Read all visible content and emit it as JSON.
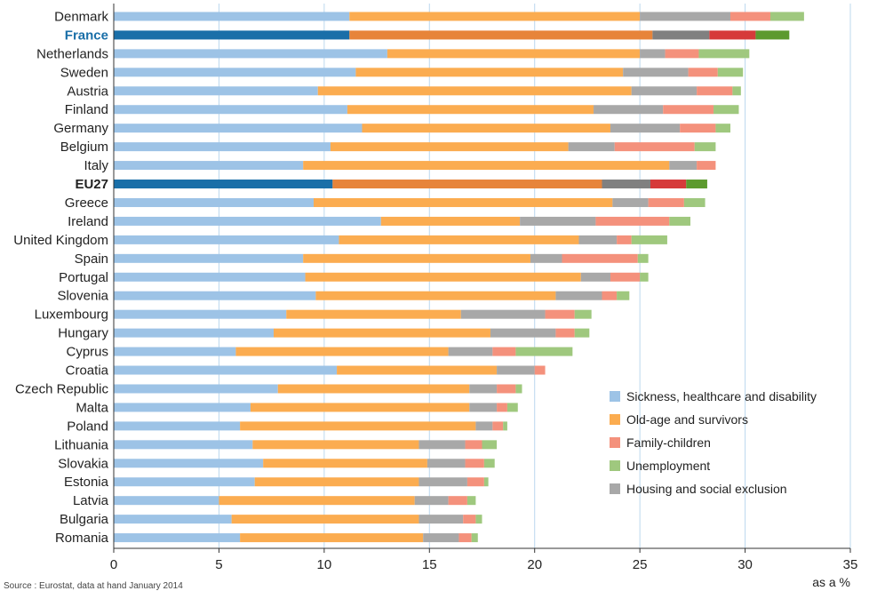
{
  "chart_data": {
    "type": "bar",
    "orientation": "horizontal",
    "stacked": true,
    "xlim": [
      0,
      35
    ],
    "x_ticks": [
      0,
      5,
      10,
      15,
      20,
      25,
      30,
      35
    ],
    "x_unit_label": "as a %",
    "grid": "vertical",
    "legend_position": "bottom-right",
    "highlighted_categories": [
      "France",
      "EU27"
    ],
    "categories": [
      "Denmark",
      "France",
      "Netherlands",
      "Sweden",
      "Austria",
      "Finland",
      "Germany",
      "Belgium",
      "Italy",
      "EU27",
      "Greece",
      "Ireland",
      "United Kingdom",
      "Spain",
      "Portugal",
      "Slovenia",
      "Luxembourg",
      "Hungary",
      "Cyprus",
      "Croatia",
      "Czech Republic",
      "Malta",
      "Poland",
      "Lithuania",
      "Slovakia",
      "Estonia",
      "Latvia",
      "Bulgaria",
      "Romania"
    ],
    "series": [
      {
        "name": "Sickness, healthcare and disability",
        "color": "#9dc3e6",
        "highlight_color": "#1a6fa8",
        "values": [
          11.2,
          11.2,
          13.0,
          11.5,
          9.7,
          11.1,
          11.8,
          10.3,
          9.0,
          10.4,
          9.5,
          12.7,
          10.7,
          9.0,
          9.1,
          9.6,
          8.2,
          7.6,
          5.8,
          10.6,
          7.8,
          6.5,
          6.0,
          6.6,
          7.1,
          6.7,
          5.0,
          5.6,
          6.0
        ]
      },
      {
        "name": "Old-age and survivors",
        "color": "#fbac50",
        "highlight_color": "#e7843a",
        "values": [
          13.8,
          14.4,
          12.0,
          12.7,
          14.9,
          11.7,
          11.8,
          11.3,
          17.4,
          12.8,
          14.2,
          6.6,
          11.4,
          10.8,
          13.1,
          11.4,
          8.3,
          10.3,
          10.1,
          7.6,
          9.1,
          10.4,
          11.2,
          7.9,
          7.8,
          7.8,
          9.3,
          8.9,
          8.7
        ]
      },
      {
        "name": "Housing and social exclusion",
        "color": "#a8a8a8",
        "highlight_color": "#808080",
        "values": [
          4.3,
          2.7,
          1.2,
          3.1,
          3.1,
          3.3,
          3.3,
          2.2,
          1.3,
          2.3,
          1.7,
          3.6,
          1.8,
          1.5,
          1.4,
          2.2,
          4.0,
          3.1,
          2.1,
          1.8,
          1.3,
          1.3,
          0.8,
          2.2,
          1.8,
          2.3,
          1.6,
          2.1,
          1.7
        ]
      },
      {
        "name": "Family-children",
        "color": "#f4917c",
        "highlight_color": "#d63a3a",
        "values": [
          1.9,
          2.2,
          1.6,
          1.4,
          1.7,
          2.4,
          1.7,
          3.8,
          0.9,
          1.7,
          1.7,
          3.5,
          0.7,
          3.6,
          1.4,
          0.7,
          1.4,
          0.9,
          1.1,
          0.5,
          0.9,
          0.5,
          0.5,
          0.8,
          0.9,
          0.8,
          0.9,
          0.6,
          0.6
        ]
      },
      {
        "name": "Unemployment",
        "color": "#9fc87e",
        "highlight_color": "#5c9a2e",
        "values": [
          1.6,
          1.6,
          2.4,
          1.2,
          0.4,
          1.2,
          0.7,
          1.0,
          0.0,
          1.0,
          1.0,
          1.0,
          1.7,
          0.5,
          0.4,
          0.6,
          0.8,
          0.7,
          2.7,
          0.0,
          0.3,
          0.5,
          0.2,
          0.7,
          0.5,
          0.2,
          0.4,
          0.3,
          0.3
        ]
      }
    ],
    "legend_order": [
      "Sickness, healthcare and disability",
      "Old-age and survivors",
      "Family-children",
      "Unemployment",
      "Housing and social exclusion"
    ],
    "source_text": "Source : Eurostat, data at hand January 2014"
  }
}
